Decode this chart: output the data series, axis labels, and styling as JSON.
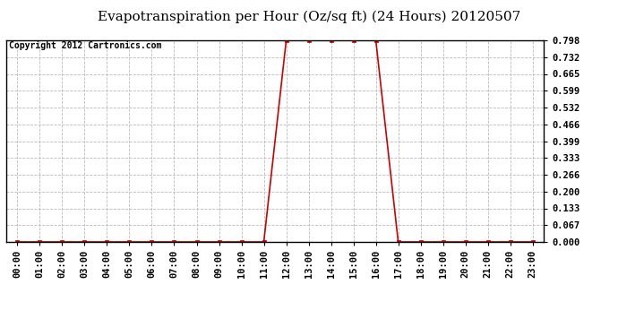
{
  "title": "Evapotranspiration per Hour (Oz/sq ft) (24 Hours) 20120507",
  "copyright_text": "Copyright 2012 Cartronics.com",
  "background_color": "#ffffff",
  "plot_bg_color": "#ffffff",
  "line_color": "#cc0000",
  "grid_color": "#bbbbbb",
  "x_labels": [
    "00:00",
    "01:00",
    "02:00",
    "03:00",
    "04:00",
    "05:00",
    "06:00",
    "07:00",
    "08:00",
    "09:00",
    "10:00",
    "11:00",
    "12:00",
    "13:00",
    "14:00",
    "15:00",
    "16:00",
    "17:00",
    "18:00",
    "19:00",
    "20:00",
    "21:00",
    "22:00",
    "23:00"
  ],
  "hours": [
    0,
    1,
    2,
    3,
    4,
    5,
    6,
    7,
    8,
    9,
    10,
    11,
    12,
    13,
    14,
    15,
    16,
    17,
    18,
    19,
    20,
    21,
    22,
    23
  ],
  "values": [
    0.0,
    0.0,
    0.0,
    0.0,
    0.0,
    0.0,
    0.0,
    0.0,
    0.0,
    0.0,
    0.0,
    0.0,
    0.798,
    0.798,
    0.798,
    0.798,
    0.798,
    0.0,
    0.0,
    0.0,
    0.0,
    0.0,
    0.0,
    0.0
  ],
  "yticks": [
    0.0,
    0.067,
    0.133,
    0.2,
    0.266,
    0.333,
    0.399,
    0.466,
    0.532,
    0.599,
    0.665,
    0.732,
    0.798
  ],
  "ylim": [
    0.0,
    0.798
  ],
  "title_fontsize": 11,
  "tick_fontsize": 7.5,
  "copyright_fontsize": 7
}
